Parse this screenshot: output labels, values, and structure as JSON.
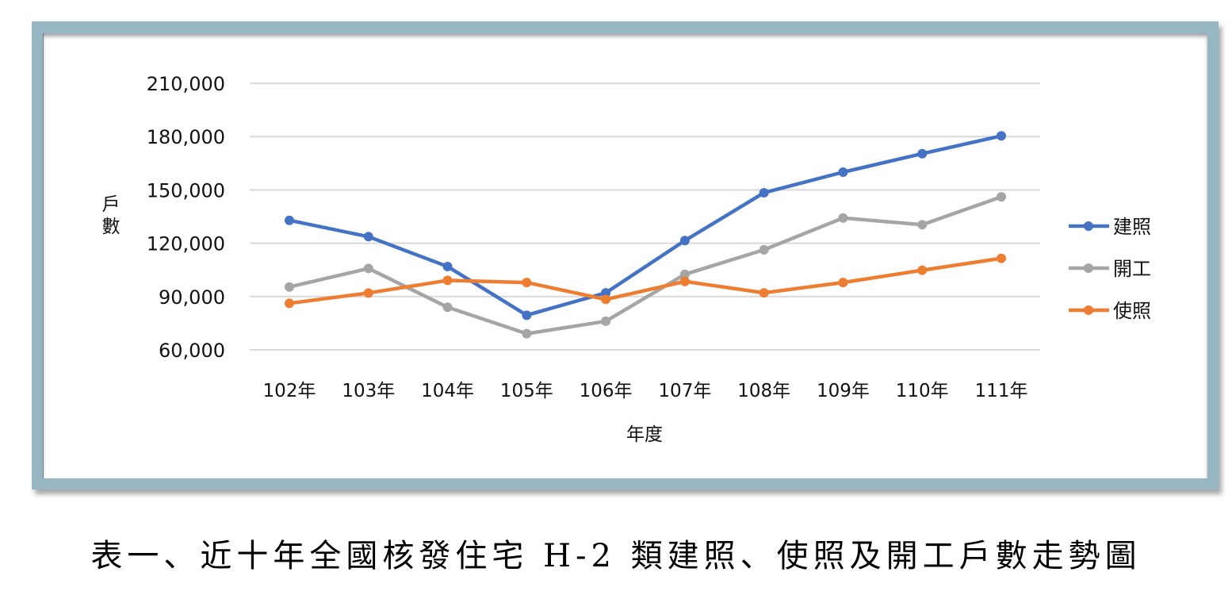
{
  "caption": "表一、近十年全國核發住宅 H-2 類建照、使照及開工戶數走勢圖",
  "colors": {
    "frame": "#95b6c2",
    "series_建照": "#4472c4",
    "series_開工": "#a5a5a5",
    "series_使照": "#ed7d31",
    "gridline": "#d9d9d9"
  },
  "chart_data": {
    "type": "line",
    "title": "",
    "xlabel": "年度",
    "ylabel": "戶數",
    "categories": [
      "102年",
      "103年",
      "104年",
      "105年",
      "106年",
      "107年",
      "108年",
      "109年",
      "110年",
      "111年"
    ],
    "yticks": [
      "60,000",
      "90,000",
      "120,000",
      "150,000",
      "180,000",
      "210,000"
    ],
    "ylim": [
      60000,
      210000
    ],
    "grid": true,
    "legend_position": "right",
    "series": [
      {
        "name": "建照",
        "color": "#4472c4",
        "values": [
          132900,
          123700,
          106900,
          79500,
          92100,
          121500,
          148400,
          160000,
          170400,
          180400
        ]
      },
      {
        "name": "開工",
        "color": "#a5a5a5",
        "values": [
          95400,
          105800,
          84000,
          69100,
          76100,
          102500,
          116300,
          134200,
          130400,
          146100
        ]
      },
      {
        "name": "使照",
        "color": "#ed7d31",
        "values": [
          86200,
          92000,
          99100,
          97900,
          88400,
          98500,
          92100,
          97900,
          104800,
          111500
        ]
      }
    ]
  }
}
